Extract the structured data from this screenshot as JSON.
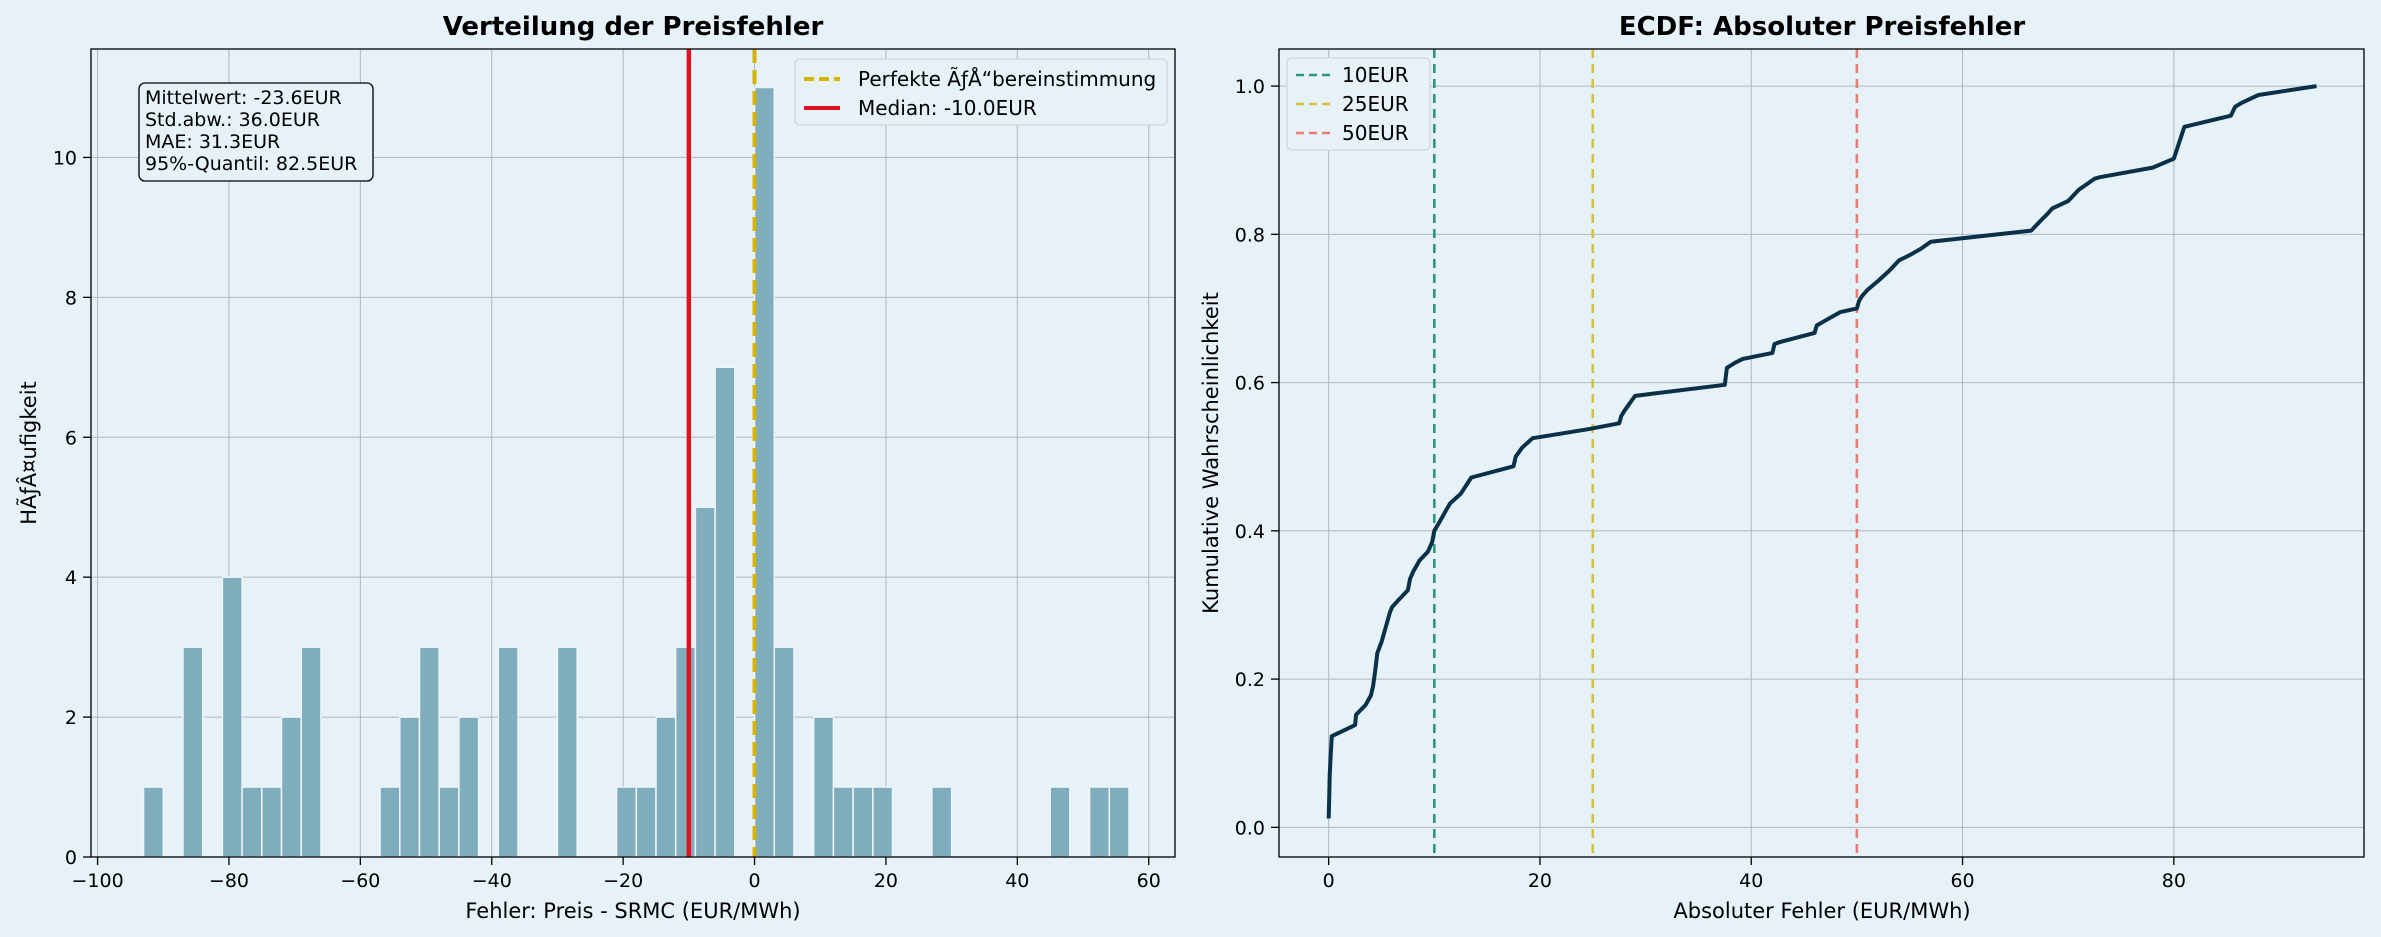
{
  "chart_data": [
    {
      "type": "bar",
      "title": "Verteilung der Preisfehler",
      "xlabel": "Fehler: Preis - SRMC (EUR/MWh)",
      "ylabel": "HÃƒÂ¤ufigkeit",
      "xlim": [
        -101,
        64
      ],
      "ylim": [
        0,
        11.55
      ],
      "xticks": [
        -100,
        -80,
        -60,
        -40,
        -20,
        0,
        20,
        40,
        60
      ],
      "yticks": [
        0,
        2,
        4,
        6,
        8,
        10
      ],
      "grid": true,
      "bar_color": "#7fadbe",
      "bin_width": 3.0,
      "bin_centers": [
        -91.5,
        -85.5,
        -79.5,
        -76.5,
        -73.5,
        -70.5,
        -67.5,
        -55.5,
        -52.5,
        -49.5,
        -46.5,
        -43.5,
        -37.5,
        -28.5,
        -19.5,
        -16.5,
        -13.5,
        -10.5,
        -7.5,
        -4.5,
        1.5,
        4.5,
        10.5,
        13.5,
        16.5,
        19.5,
        28.5,
        46.5,
        52.5,
        55.5
      ],
      "counts": [
        1,
        3,
        4,
        1,
        1,
        2,
        3,
        1,
        2,
        3,
        1,
        2,
        3,
        3,
        1,
        1,
        2,
        3,
        5,
        7,
        11,
        3,
        2,
        1,
        1,
        1,
        1,
        1,
        1,
        1
      ],
      "vlines": [
        {
          "name": "Perfekte ÃƒÅ“bereinstimmung",
          "x": 0,
          "color": "#d4b400",
          "dash": true
        },
        {
          "name": "Median: -10.0EUR",
          "x": -10,
          "color": "#e0101e",
          "dash": false
        }
      ],
      "legend_position": "top-right",
      "stats_box": [
        "Mittelwert: -23.6EUR",
        "Std.abw.: 36.0EUR",
        "MAE: 31.3EUR",
        "95%-Quantil: 82.5EUR"
      ]
    },
    {
      "type": "line",
      "title": "ECDF: Absoluter Preisfehler",
      "xlabel": "Absoluter Fehler (EUR/MWh)",
      "ylabel": "Kumulative Wahrscheinlichkeit",
      "xlim": [
        -4.7,
        98
      ],
      "ylim": [
        -0.04,
        1.05
      ],
      "xticks": [
        0,
        20,
        40,
        60,
        80
      ],
      "yticks": [
        0.0,
        0.2,
        0.4,
        0.6,
        0.8,
        1.0
      ],
      "grid": true,
      "line_color": "#0a3147",
      "series": [
        {
          "x": [
            0,
            0.05,
            0.1,
            0.2,
            0.3,
            2.5,
            2.6,
            3.5,
            4.0,
            4.2,
            4.4,
            4.6,
            5.0,
            5.5,
            5.8,
            6.0,
            6.5,
            7.5,
            7.7,
            8.0,
            8.6,
            9.4,
            9.8,
            10.0,
            10.5,
            11.0,
            11.5,
            12.5,
            13.5,
            17.5,
            17.7,
            18.3,
            19.3,
            24.5,
            27.5,
            27.7,
            28.0,
            29.0,
            37.5,
            37.7,
            38.5,
            39.2,
            42.0,
            42.2,
            42.8,
            46.0,
            46.2,
            46.8,
            48.4,
            50.0,
            50.2,
            50.5,
            51.0,
            52.0,
            53.0,
            54.0,
            55.0,
            56.0,
            57.0,
            66.5,
            67.5,
            68.0,
            68.5,
            70.0,
            71.0,
            72.5,
            73.0,
            78.0,
            80.0,
            80.3,
            81.0,
            85.4,
            85.8,
            86.5,
            88.0,
            93.5
          ],
          "y": [
            0.012,
            0.04,
            0.07,
            0.1,
            0.123,
            0.138,
            0.152,
            0.165,
            0.178,
            0.19,
            0.21,
            0.235,
            0.25,
            0.275,
            0.29,
            0.297,
            0.305,
            0.32,
            0.335,
            0.345,
            0.36,
            0.372,
            0.385,
            0.4,
            0.412,
            0.425,
            0.437,
            0.45,
            0.472,
            0.487,
            0.5,
            0.512,
            0.525,
            0.537,
            0.545,
            0.555,
            0.562,
            0.582,
            0.597,
            0.62,
            0.627,
            0.632,
            0.64,
            0.652,
            0.655,
            0.667,
            0.677,
            0.682,
            0.695,
            0.7,
            0.71,
            0.717,
            0.725,
            0.737,
            0.75,
            0.765,
            0.772,
            0.78,
            0.79,
            0.805,
            0.82,
            0.827,
            0.835,
            0.845,
            0.86,
            0.875,
            0.877,
            0.89,
            0.902,
            0.915,
            0.945,
            0.96,
            0.972,
            0.978,
            0.988,
            1.0
          ]
        }
      ],
      "vlines": [
        {
          "name": "10EUR",
          "x": 10,
          "color": "#2f9480"
        },
        {
          "name": "25EUR",
          "x": 25,
          "color": "#d8c23a"
        },
        {
          "name": "50EUR",
          "x": 50,
          "color": "#f07b72"
        }
      ],
      "legend_position": "top-left"
    }
  ]
}
